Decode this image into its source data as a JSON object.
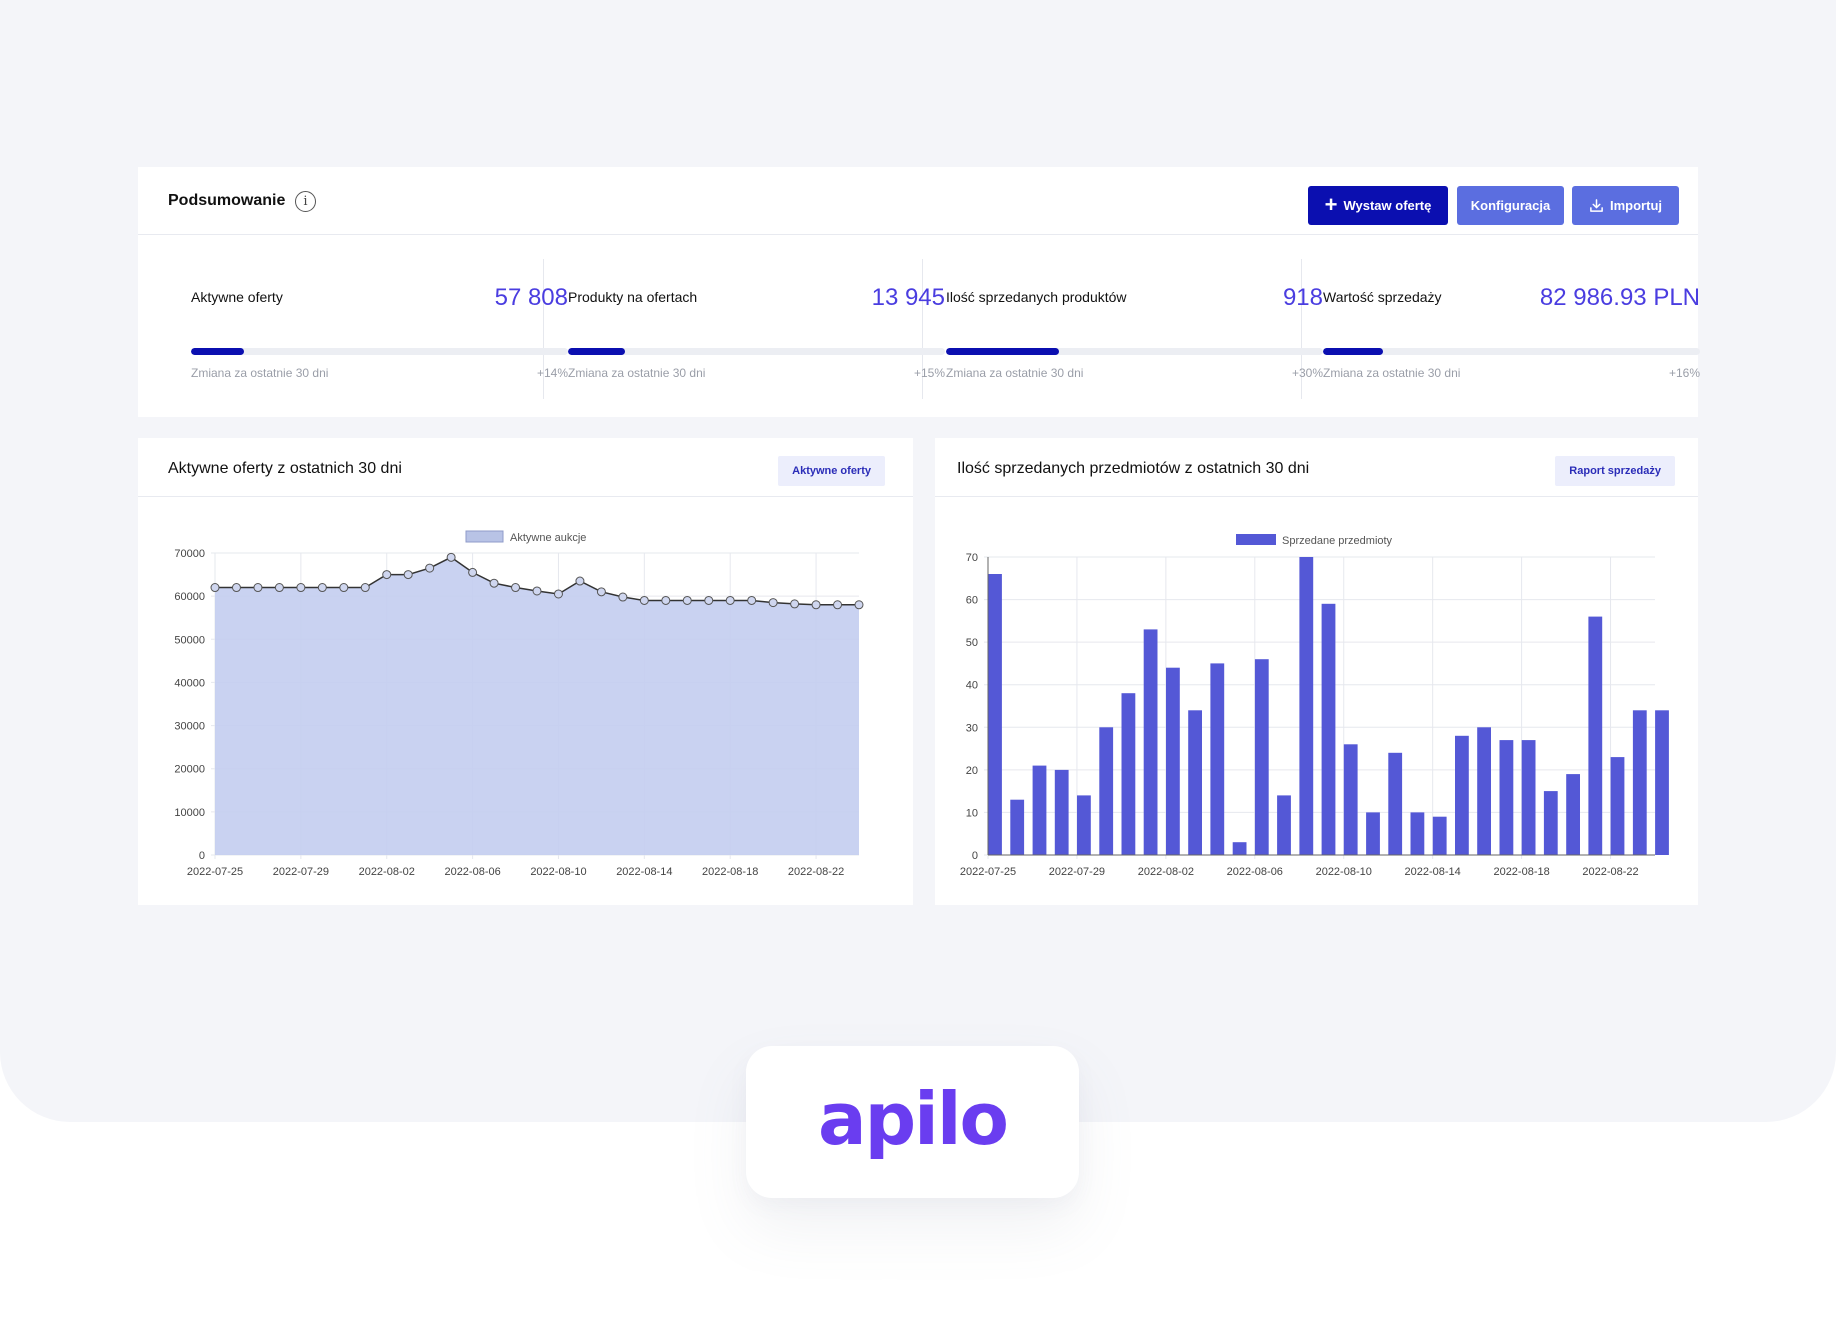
{
  "summary": {
    "title": "Podsumowanie",
    "info_glyph": "i",
    "buttons": {
      "primary": {
        "plus_glyph": "+",
        "label": "Wystaw ofertę"
      },
      "config": "Konfiguracja",
      "import": {
        "icon": "download-icon",
        "label": "Importuj"
      }
    },
    "stats": [
      {
        "label": "Aktywne oferty",
        "value": "57 808",
        "progress": 0.14,
        "caption": "Zmiana za ostatnie 30 dni",
        "change": "+14%"
      },
      {
        "label": "Produkty na ofertach",
        "value": "13 945",
        "progress": 0.15,
        "caption": "Zmiana za ostatnie 30 dni",
        "change": "+15%"
      },
      {
        "label": "Ilość sprzedanych produktów",
        "value": "918",
        "progress": 0.3,
        "caption": "Zmiana za ostatnie 30 dni",
        "change": "+30%"
      },
      {
        "label": "Wartość sprzedaży",
        "value": "82 986.93 PLN",
        "progress": 0.16,
        "caption": "Zmiana za ostatnie 30 dni",
        "change": "+16%"
      }
    ]
  },
  "charts": {
    "left": {
      "title": "Aktywne oferty z ostatnich 30 dni",
      "button": "Aktywne oferty"
    },
    "right": {
      "title": "Ilość sprzedanych przedmiotów z ostatnich 30 dni",
      "button": "Raport sprzedaży"
    }
  },
  "colors": {
    "accent": "#0b0fb0",
    "value_text": "#4a3de0",
    "area_fill": "#c3cdef",
    "bar_fill": "#5458d6",
    "logo": "#6a3df0"
  },
  "chart_data": [
    {
      "type": "area",
      "legend": [
        "Aktywne aukcje"
      ],
      "legend_position": "top-center",
      "grid": true,
      "x_start": "2022-07-25",
      "x_end": "2022-08-24",
      "xticks": [
        "2022-07-25",
        "2022-07-29",
        "2022-08-02",
        "2022-08-06",
        "2022-08-10",
        "2022-08-14",
        "2022-08-18",
        "2022-08-22"
      ],
      "ylim": [
        0,
        70000
      ],
      "yticks": [
        0,
        10000,
        20000,
        30000,
        40000,
        50000,
        60000,
        70000
      ],
      "series": [
        {
          "name": "Aktywne aukcje",
          "x": [
            "2022-07-25",
            "2022-07-26",
            "2022-07-27",
            "2022-07-28",
            "2022-07-29",
            "2022-07-30",
            "2022-07-31",
            "2022-08-01",
            "2022-08-02",
            "2022-08-03",
            "2022-08-04",
            "2022-08-05",
            "2022-08-06",
            "2022-08-07",
            "2022-08-08",
            "2022-08-09",
            "2022-08-10",
            "2022-08-11",
            "2022-08-12",
            "2022-08-13",
            "2022-08-14",
            "2022-08-15",
            "2022-08-16",
            "2022-08-17",
            "2022-08-18",
            "2022-08-19",
            "2022-08-20",
            "2022-08-21",
            "2022-08-22",
            "2022-08-23",
            "2022-08-24"
          ],
          "values": [
            62000,
            62000,
            62000,
            62000,
            62000,
            62000,
            62000,
            62000,
            65000,
            65000,
            66500,
            69000,
            65500,
            63000,
            62000,
            61200,
            60500,
            63500,
            61000,
            59800,
            59000,
            59000,
            59000,
            59000,
            59000,
            59000,
            58500,
            58200,
            58000,
            58000,
            58000
          ]
        }
      ]
    },
    {
      "type": "bar",
      "legend": [
        "Sprzedane przedmioty"
      ],
      "legend_position": "top-center",
      "grid": true,
      "x_start": "2022-07-25",
      "x_end": "2022-08-24",
      "xticks": [
        "2022-07-25",
        "2022-07-29",
        "2022-08-02",
        "2022-08-06",
        "2022-08-10",
        "2022-08-14",
        "2022-08-18",
        "2022-08-22"
      ],
      "ylim": [
        0,
        70
      ],
      "yticks": [
        0,
        10,
        20,
        30,
        40,
        50,
        60,
        70
      ],
      "series": [
        {
          "name": "Sprzedane przedmioty",
          "x": [
            "2022-07-25",
            "2022-07-26",
            "2022-07-27",
            "2022-07-28",
            "2022-07-29",
            "2022-07-30",
            "2022-07-31",
            "2022-08-01",
            "2022-08-02",
            "2022-08-03",
            "2022-08-04",
            "2022-08-05",
            "2022-08-06",
            "2022-08-07",
            "2022-08-08",
            "2022-08-09",
            "2022-08-10",
            "2022-08-11",
            "2022-08-12",
            "2022-08-13",
            "2022-08-14",
            "2022-08-15",
            "2022-08-16",
            "2022-08-17",
            "2022-08-18",
            "2022-08-19",
            "2022-08-20",
            "2022-08-21",
            "2022-08-22",
            "2022-08-23",
            "2022-08-24"
          ],
          "values": [
            66,
            13,
            21,
            20,
            14,
            30,
            38,
            53,
            44,
            34,
            45,
            3,
            46,
            14,
            70,
            59,
            26,
            10,
            24,
            10,
            9,
            28,
            30,
            27,
            27,
            15,
            19,
            56,
            23,
            34,
            34
          ]
        }
      ]
    }
  ],
  "brand": {
    "logo_text": "apilo"
  }
}
